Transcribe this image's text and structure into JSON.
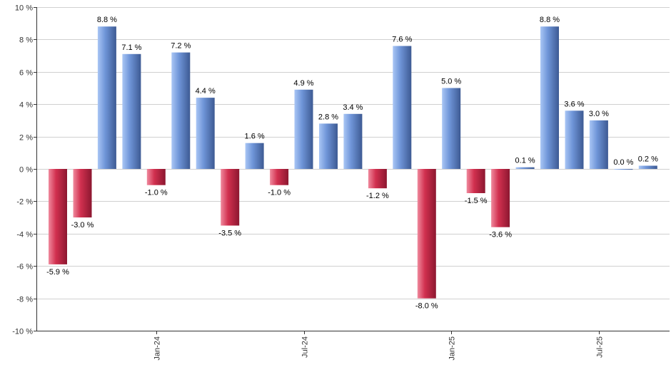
{
  "chart_data": {
    "type": "bar",
    "title": "",
    "xlabel": "",
    "ylabel": "",
    "ylim": [
      -10,
      10
    ],
    "y_ticks": [
      10,
      8,
      6,
      4,
      2,
      0,
      -2,
      -4,
      -6,
      -8,
      -10
    ],
    "y_tick_labels": [
      "10 %",
      "8 %",
      "6 %",
      "4 %",
      "2 %",
      "0 %",
      "-2 %",
      "-4 %",
      "-6 %",
      "-8 %",
      "-10 %"
    ],
    "x_tick_labels": [
      {
        "label": "Jan-24",
        "index": 4
      },
      {
        "label": "Jul-24",
        "index": 10
      },
      {
        "label": "Jan-25",
        "index": 16
      },
      {
        "label": "Jul-25",
        "index": 22
      }
    ],
    "values": [
      -5.9,
      -3.0,
      8.8,
      7.1,
      -1.0,
      7.2,
      4.4,
      -3.5,
      1.6,
      -1.0,
      4.9,
      2.8,
      3.4,
      -1.2,
      7.6,
      -8.0,
      5.0,
      -1.5,
      -3.6,
      0.1,
      8.8,
      3.6,
      3.0,
      0.0,
      0.2
    ],
    "labels": [
      "-5.9 %",
      "-3.0 %",
      "8.8 %",
      "7.1 %",
      "-1.0 %",
      "7.2 %",
      "4.4 %",
      "-3.5 %",
      "1.6 %",
      "-1.0 %",
      "4.9 %",
      "2.8 %",
      "3.4 %",
      "-1.2 %",
      "7.6 %",
      "-8.0 %",
      "5.0 %",
      "-1.5 %",
      "-3.6 %",
      "0.1 %",
      "8.8 %",
      "3.6 %",
      "3.0 %",
      "0.0 %",
      "0.2 %"
    ],
    "grid": true,
    "colors": {
      "positive_light": "#a9c6f5",
      "positive_mid": "#6f95d8",
      "positive_dark": "#3d5a93",
      "negative_light": "#f08a9e",
      "negative_mid": "#d1304f",
      "negative_dark": "#8c1730",
      "gridline": "#d0d0d0",
      "axis": "#333333"
    }
  }
}
